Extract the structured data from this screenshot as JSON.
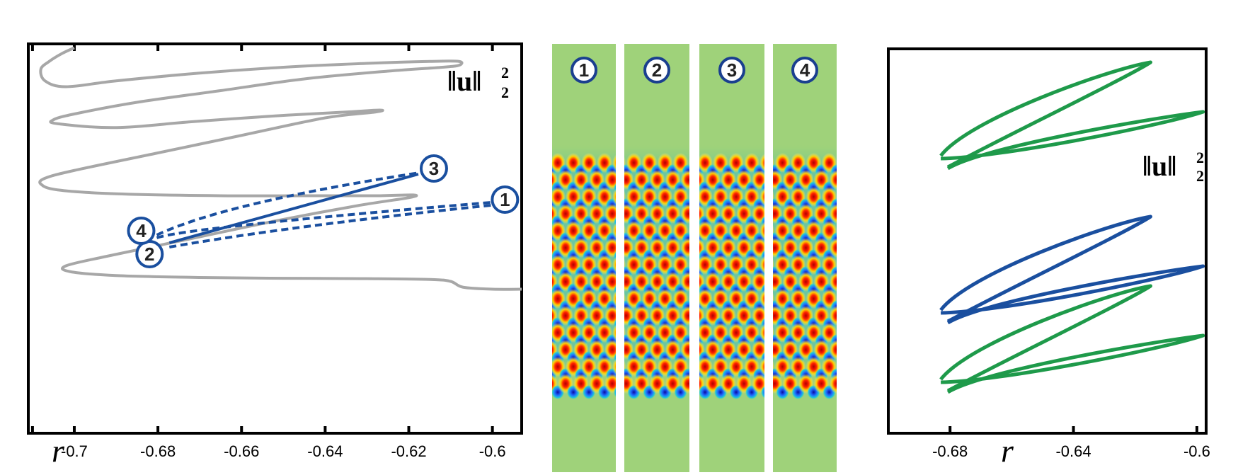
{
  "chart_data": [
    {
      "type": "line",
      "panel": "left",
      "xlabel": "r",
      "ylabel": "||u||_2^2",
      "ylabel_parts": {
        "base": "‖u‖",
        "sup": "2",
        "sub": "2"
      },
      "x_ticks": [
        -0.7,
        -0.68,
        -0.66,
        -0.64,
        -0.62,
        -0.6
      ],
      "x_tick_labels": [
        "-0.7",
        "-0.68",
        "-0.66",
        "-0.64",
        "-0.62",
        "-0.6"
      ],
      "xlim": [
        -0.711,
        -0.593
      ],
      "ylim": [
        0,
        1
      ],
      "grid": false,
      "series": [
        {
          "style": "solid-gray",
          "color": "#a7a7a7",
          "x": [
            -0.7,
            -0.703,
            -0.706,
            -0.708,
            -0.707,
            -0.702,
            -0.69,
            -0.67,
            -0.65,
            -0.63,
            -0.615,
            -0.608,
            -0.608,
            -0.612,
            -0.625,
            -0.645,
            -0.665,
            -0.685,
            -0.7,
            -0.705,
            -0.704,
            -0.69,
            -0.672,
            -0.652,
            -0.635,
            -0.627,
            -0.628,
            -0.64,
            -0.66,
            -0.68,
            -0.7,
            -0.707,
            -0.708,
            -0.704,
            -0.69,
            -0.665,
            -0.645,
            -0.628,
            -0.619,
            -0.62,
            -0.632,
            -0.652,
            -0.672,
            -0.692,
            -0.702,
            -0.701,
            -0.69,
            -0.67,
            -0.65,
            -0.63,
            -0.615,
            -0.61,
            -0.607,
            -0.6,
            -0.593
          ],
          "y": [
            0.99,
            0.975,
            0.955,
            0.935,
            0.905,
            0.89,
            0.905,
            0.925,
            0.94,
            0.95,
            0.955,
            0.955,
            0.945,
            0.94,
            0.93,
            0.91,
            0.88,
            0.85,
            0.82,
            0.805,
            0.795,
            0.785,
            0.8,
            0.815,
            0.825,
            0.83,
            0.825,
            0.81,
            0.765,
            0.72,
            0.675,
            0.655,
            0.64,
            0.625,
            0.615,
            0.61,
            0.61,
            0.61,
            0.612,
            0.605,
            0.585,
            0.545,
            0.5,
            0.455,
            0.43,
            0.415,
            0.405,
            0.4,
            0.398,
            0.397,
            0.395,
            0.39,
            0.375,
            0.37,
            0.37
          ]
        }
      ],
      "markers": [
        {
          "label": "1",
          "x": -0.597,
          "y": 0.6
        },
        {
          "label": "2",
          "x": -0.682,
          "y": 0.46
        },
        {
          "label": "3",
          "x": -0.614,
          "y": 0.68
        },
        {
          "label": "4",
          "x": -0.684,
          "y": 0.52
        }
      ],
      "branch_color": "#1a4f9f"
    },
    {
      "type": "image-strips",
      "panel": "middle",
      "labels": [
        "1",
        "2",
        "3",
        "4"
      ]
    },
    {
      "type": "line",
      "panel": "right",
      "xlabel": "r",
      "ylabel": "||u||_2^2",
      "ylabel_parts": {
        "base": "‖u‖",
        "sup": "2",
        "sub": "2"
      },
      "x_ticks": [
        -0.68,
        -0.64,
        -0.6
      ],
      "x_tick_labels": [
        "-0.68",
        "-0.64",
        "-0.6"
      ],
      "xlim": [
        -0.7,
        -0.597
      ],
      "ylim": [
        0,
        1
      ],
      "grid": false,
      "loops": [
        {
          "color": "#1e9a4a",
          "offset": 0.0
        },
        {
          "color": "#1a4f9f",
          "offset": 0.0
        },
        {
          "color": "#1e9a4a",
          "offset": 0.0
        }
      ]
    }
  ]
}
